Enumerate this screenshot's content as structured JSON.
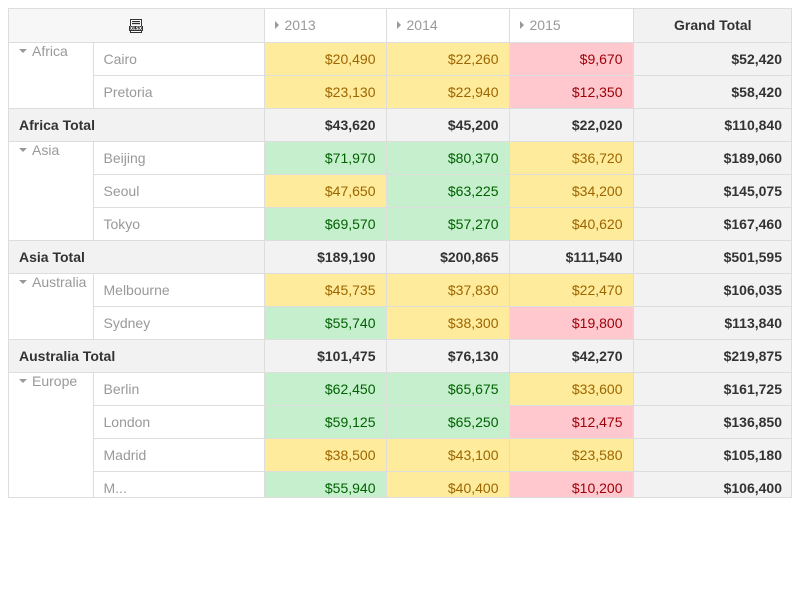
{
  "toolbar": {
    "export_icon": "xlsx-export-icon",
    "export_label": "XLSX"
  },
  "columns": {
    "years": [
      "2013",
      "2014",
      "2015"
    ],
    "grand_total": "Grand Total"
  },
  "colors": {
    "high_bg": "#c6efce",
    "high_fg": "#006100",
    "mid_bg": "#ffeb9c",
    "mid_fg": "#9c6500",
    "low_bg": "#ffc7ce",
    "low_fg": "#9c0006"
  },
  "regions": [
    {
      "name": "Africa",
      "cities": [
        {
          "name": "Cairo",
          "values": [
            "$20,490",
            "$22,260",
            "$9,670"
          ],
          "levels": [
            "mid",
            "mid",
            "low"
          ],
          "total": "$52,420"
        },
        {
          "name": "Pretoria",
          "values": [
            "$23,130",
            "$22,940",
            "$12,350"
          ],
          "levels": [
            "mid",
            "mid",
            "low"
          ],
          "total": "$58,420"
        }
      ],
      "total_label": "Africa Total",
      "totals": [
        "$43,620",
        "$45,200",
        "$22,020"
      ],
      "grand": "$110,840"
    },
    {
      "name": "Asia",
      "cities": [
        {
          "name": "Beijing",
          "values": [
            "$71,970",
            "$80,370",
            "$36,720"
          ],
          "levels": [
            "high",
            "high",
            "mid"
          ],
          "total": "$189,060"
        },
        {
          "name": "Seoul",
          "values": [
            "$47,650",
            "$63,225",
            "$34,200"
          ],
          "levels": [
            "mid",
            "high",
            "mid"
          ],
          "total": "$145,075"
        },
        {
          "name": "Tokyo",
          "values": [
            "$69,570",
            "$57,270",
            "$40,620"
          ],
          "levels": [
            "high",
            "high",
            "mid"
          ],
          "total": "$167,460"
        }
      ],
      "total_label": "Asia Total",
      "totals": [
        "$189,190",
        "$200,865",
        "$111,540"
      ],
      "grand": "$501,595"
    },
    {
      "name": "Australia",
      "cities": [
        {
          "name": "Melbourne",
          "values": [
            "$45,735",
            "$37,830",
            "$22,470"
          ],
          "levels": [
            "mid",
            "mid",
            "mid"
          ],
          "total": "$106,035"
        },
        {
          "name": "Sydney",
          "values": [
            "$55,740",
            "$38,300",
            "$19,800"
          ],
          "levels": [
            "high",
            "mid",
            "low"
          ],
          "total": "$113,840"
        }
      ],
      "total_label": "Australia Total",
      "totals": [
        "$101,475",
        "$76,130",
        "$42,270"
      ],
      "grand": "$219,875"
    },
    {
      "name": "Europe",
      "cities": [
        {
          "name": "Berlin",
          "values": [
            "$62,450",
            "$65,675",
            "$33,600"
          ],
          "levels": [
            "high",
            "high",
            "mid"
          ],
          "total": "$161,725"
        },
        {
          "name": "London",
          "values": [
            "$59,125",
            "$65,250",
            "$12,475"
          ],
          "levels": [
            "high",
            "high",
            "low"
          ],
          "total": "$136,850"
        },
        {
          "name": "Madrid",
          "values": [
            "$38,500",
            "$43,100",
            "$23,580"
          ],
          "levels": [
            "mid",
            "mid",
            "mid"
          ],
          "total": "$105,180"
        },
        {
          "name": "M...",
          "values": [
            "$55,940",
            "$40,400",
            "$10,200"
          ],
          "levels": [
            "high",
            "mid",
            "low"
          ],
          "total": "$106,400"
        }
      ]
    }
  ]
}
